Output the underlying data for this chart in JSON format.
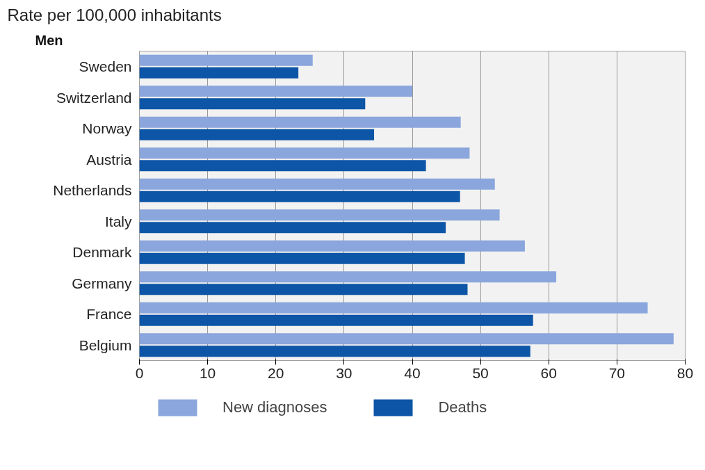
{
  "chart_data": {
    "type": "bar",
    "orientation": "horizontal",
    "title": "Rate per 100,000 inhabitants",
    "subtitle": "Men",
    "categories": [
      "Sweden",
      "Switzerland",
      "Norway",
      "Austria",
      "Netherlands",
      "Italy",
      "Denmark",
      "Germany",
      "France",
      "Belgium"
    ],
    "series": [
      {
        "name": "New diagnoses",
        "color": "#8aa6dc",
        "values": [
          25.4,
          40.0,
          47.1,
          48.4,
          52.1,
          52.8,
          56.5,
          61.1,
          74.5,
          78.3
        ]
      },
      {
        "name": "Deaths",
        "color": "#0d55a6",
        "values": [
          23.3,
          33.1,
          34.4,
          42.0,
          47.0,
          44.9,
          47.7,
          48.1,
          57.7,
          57.3
        ]
      }
    ],
    "xlim": [
      0,
      80
    ],
    "xticks": [
      0,
      10,
      20,
      30,
      40,
      50,
      60,
      70,
      80
    ],
    "grid": "x",
    "legend": "bottom"
  }
}
